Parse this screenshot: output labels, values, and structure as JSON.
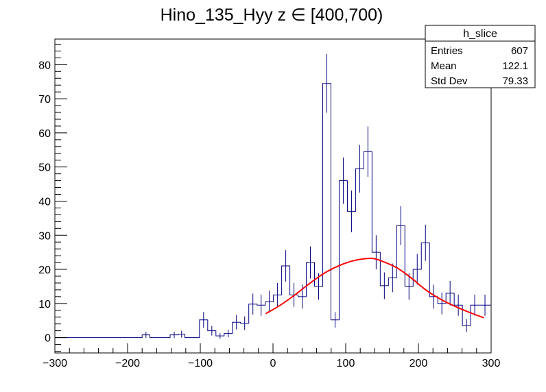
{
  "chart_data": {
    "type": "histogram",
    "title": "Hino_135_Hyy z  ∈ [400,700)",
    "xlabel": "",
    "ylabel": "",
    "xlim": [
      -300,
      300
    ],
    "ylim": [
      -4.5,
      87.5
    ],
    "grid": false,
    "x_ticks": [
      -300,
      -200,
      -100,
      0,
      100,
      200,
      300
    ],
    "y_ticks": [
      0,
      10,
      20,
      30,
      40,
      50,
      60,
      70,
      80
    ],
    "x_tick_labels": [
      "−300",
      "−200",
      "−100",
      "0",
      "100",
      "200",
      "300"
    ],
    "y_tick_labels": [
      "0",
      "10",
      "20",
      "30",
      "40",
      "50",
      "60",
      "70",
      "80"
    ],
    "bin_width": 11.3,
    "bins": [
      {
        "lo": -300,
        "hi": -180,
        "value": 0,
        "err": 0
      },
      {
        "lo": -180,
        "hi": -169.4,
        "value": 0.8,
        "err": 0.9
      },
      {
        "lo": -169.4,
        "hi": -141.5,
        "value": 0,
        "err": 0
      },
      {
        "lo": -141.5,
        "hi": -130.2,
        "value": 0.8,
        "err": 0.9
      },
      {
        "lo": -130.2,
        "hi": -121.2,
        "value": 1,
        "err": 1.0
      },
      {
        "lo": -121.2,
        "hi": -101.1,
        "value": 0,
        "err": 0
      },
      {
        "lo": -101.1,
        "hi": -89.8,
        "value": 5.2,
        "err": 2.3
      },
      {
        "lo": -89.8,
        "hi": -78.5,
        "value": 2,
        "err": 1.4
      },
      {
        "lo": -78.5,
        "hi": -67.2,
        "value": 0.5,
        "err": 0.8
      },
      {
        "lo": -67.2,
        "hi": -55.9,
        "value": 1.2,
        "err": 1.1
      },
      {
        "lo": -55.9,
        "hi": -44.6,
        "value": 4.5,
        "err": 2.1
      },
      {
        "lo": -44.6,
        "hi": -33.3,
        "value": 4.2,
        "err": 2.0
      },
      {
        "lo": -33.3,
        "hi": -22.0,
        "value": 9.8,
        "err": 3.1
      },
      {
        "lo": -22.0,
        "hi": -10.7,
        "value": 9.5,
        "err": 3.1
      },
      {
        "lo": -10.7,
        "hi": 0.6,
        "value": 10.5,
        "err": 3.2
      },
      {
        "lo": 0.6,
        "hi": 11.9,
        "value": 12.5,
        "err": 3.5
      },
      {
        "lo": 11.9,
        "hi": 23.2,
        "value": 21,
        "err": 4.6
      },
      {
        "lo": 23.2,
        "hi": 34.5,
        "value": 12.5,
        "err": 3.5
      },
      {
        "lo": 34.5,
        "hi": 45.8,
        "value": 12,
        "err": 3.5
      },
      {
        "lo": 45.8,
        "hi": 57.1,
        "value": 22,
        "err": 4.7
      },
      {
        "lo": 57.1,
        "hi": 68.4,
        "value": 15,
        "err": 3.9
      },
      {
        "lo": 68.4,
        "hi": 79.7,
        "value": 74.5,
        "err": 8.6
      },
      {
        "lo": 79.7,
        "hi": 91.0,
        "value": 5.2,
        "err": 2.3
      },
      {
        "lo": 91.0,
        "hi": 102.3,
        "value": 46,
        "err": 6.8
      },
      {
        "lo": 102.3,
        "hi": 113.6,
        "value": 37,
        "err": 6.1
      },
      {
        "lo": 113.6,
        "hi": 124.9,
        "value": 49.5,
        "err": 7.0
      },
      {
        "lo": 124.9,
        "hi": 136.2,
        "value": 54.5,
        "err": 7.4
      },
      {
        "lo": 136.2,
        "hi": 147.5,
        "value": 25,
        "err": 5.0
      },
      {
        "lo": 147.5,
        "hi": 158.8,
        "value": 15.2,
        "err": 3.9
      },
      {
        "lo": 158.8,
        "hi": 170.1,
        "value": 17.5,
        "err": 4.2
      },
      {
        "lo": 170.1,
        "hi": 181.4,
        "value": 32.8,
        "err": 5.7
      },
      {
        "lo": 181.4,
        "hi": 192.7,
        "value": 15,
        "err": 3.9
      },
      {
        "lo": 192.7,
        "hi": 204.0,
        "value": 20,
        "err": 4.5
      },
      {
        "lo": 204.0,
        "hi": 215.3,
        "value": 27.8,
        "err": 5.3
      },
      {
        "lo": 215.3,
        "hi": 226.6,
        "value": 12,
        "err": 3.5
      },
      {
        "lo": 226.6,
        "hi": 237.9,
        "value": 10,
        "err": 3.2
      },
      {
        "lo": 237.9,
        "hi": 249.2,
        "value": 13,
        "err": 3.6
      },
      {
        "lo": 249.2,
        "hi": 260.5,
        "value": 9.5,
        "err": 3.1
      },
      {
        "lo": 260.5,
        "hi": 271.8,
        "value": 3.5,
        "err": 1.9
      },
      {
        "lo": 271.8,
        "hi": 283.1,
        "value": 9.5,
        "err": 3.1
      },
      {
        "lo": 283.1,
        "hi": 300,
        "value": 9.5,
        "err": 3.1
      }
    ],
    "fit": {
      "color": "#ff0000",
      "x": [
        -10,
        10,
        30,
        50,
        70,
        90,
        110,
        130,
        140,
        150,
        170,
        190,
        210,
        230,
        250,
        270,
        290
      ],
      "y": [
        7,
        9.5,
        12.5,
        15.8,
        18.8,
        21,
        22.5,
        23.2,
        23.1,
        22.4,
        20.5,
        17.5,
        14,
        11.3,
        9.2,
        7.4,
        5.8
      ]
    },
    "colors": {
      "histogram": "#000080",
      "fit": "#ff0000",
      "axis": "#000000"
    },
    "stats_box": {
      "title": "h_slice",
      "rows": [
        {
          "label": "Entries",
          "value": "607"
        },
        {
          "label": "Mean",
          "value": "122.1"
        },
        {
          "label": "Std Dev",
          "value": "79.33"
        }
      ]
    }
  }
}
